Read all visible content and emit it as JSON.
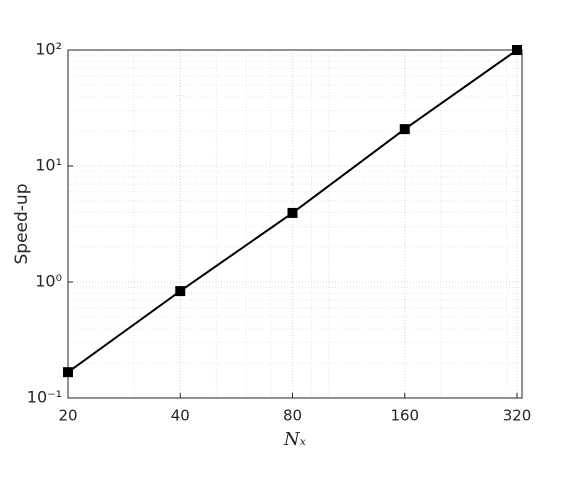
{
  "chart_data": {
    "type": "line",
    "x_scale": "log",
    "y_scale": "log",
    "grid": true,
    "minor_grid": true,
    "xlabel": "Nₓ",
    "ylabel": "Speed-up",
    "x": [
      20,
      40,
      80,
      160,
      320
    ],
    "series": [
      {
        "color": "#000000",
        "marker": "square",
        "values": [
          0.167,
          0.835,
          3.94,
          20.8,
          100
        ]
      }
    ],
    "xlim": [
      20,
      330
    ],
    "xticks": [
      20,
      40,
      80,
      160,
      320
    ],
    "ylim": [
      0.1,
      100
    ],
    "yticks": [
      {
        "value": 0.1,
        "label": "10⁻¹"
      },
      {
        "value": 1,
        "label": "10⁰"
      },
      {
        "value": 10,
        "label": "10¹"
      },
      {
        "value": 100,
        "label": "10²"
      }
    ]
  }
}
